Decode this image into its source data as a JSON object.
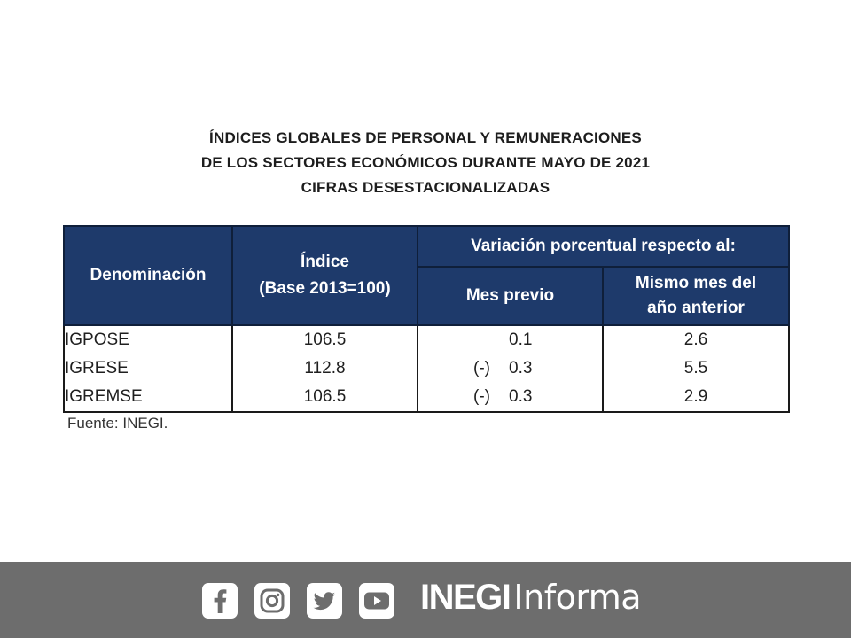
{
  "title": {
    "line1": "ÍNDICES GLOBALES DE PERSONAL Y REMUNERACIONES",
    "line2": "DE LOS SECTORES ECONÓMICOS DURANTE MAYO DE 2021",
    "line3": "CIFRAS DESESTACIONALIZADAS"
  },
  "table": {
    "headers": {
      "denominacion": "Denominación",
      "indice_line1": "Índice",
      "indice_line2": "(Base 2013=100)",
      "variacion": "Variación porcentual respecto al:",
      "mes_previo": "Mes previo",
      "mismo_mes_line1": "Mismo mes del",
      "mismo_mes_line2": "año anterior"
    },
    "rows": [
      {
        "name": "IGPOSE",
        "indice": "106.5",
        "mes_sign": "",
        "mes_previo": "0.1",
        "anual": "2.6"
      },
      {
        "name": "IGRESE",
        "indice": "112.8",
        "mes_sign": "(-)",
        "mes_previo": "0.3",
        "anual": "5.5"
      },
      {
        "name": "IGREMSE",
        "indice": "106.5",
        "mes_sign": "(-)",
        "mes_previo": "0.3",
        "anual": "2.9"
      }
    ]
  },
  "source": "Fuente: INEGI.",
  "footer": {
    "social_icons": [
      "facebook-icon",
      "instagram-icon",
      "twitter-icon",
      "youtube-icon"
    ],
    "brand_bold": "INEGI",
    "brand_light": "Informa"
  },
  "colors": {
    "header_bg": "#1e3a6b",
    "footer_bg": "#6d6d6d"
  }
}
